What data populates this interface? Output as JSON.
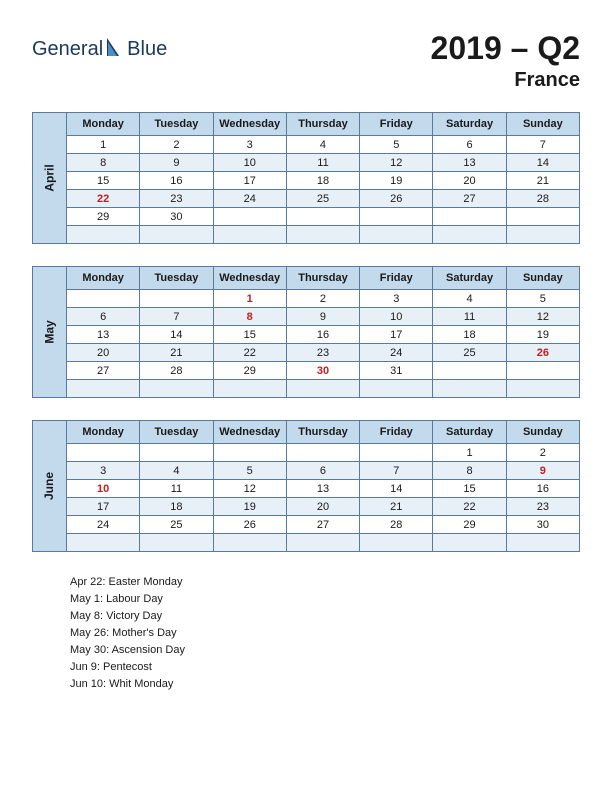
{
  "logo": {
    "text1": "General",
    "text2": "Blue"
  },
  "title": "2019 – Q2",
  "subtitle": "France",
  "colors": {
    "header_bg": "#c3d9ec",
    "shade_bg": "#e8f0f7",
    "border": "#5a7a9a",
    "holiday_text": "#c02020",
    "logo_text": "#1a3a5c",
    "logo_accent": "#4a8fc7",
    "logo_dark": "#1a3a5c"
  },
  "weekdays": [
    "Monday",
    "Tuesday",
    "Wednesday",
    "Thursday",
    "Friday",
    "Saturday",
    "Sunday"
  ],
  "months": [
    {
      "name": "April",
      "rows": [
        [
          {
            "d": "1"
          },
          {
            "d": "2"
          },
          {
            "d": "3"
          },
          {
            "d": "4"
          },
          {
            "d": "5"
          },
          {
            "d": "6"
          },
          {
            "d": "7"
          }
        ],
        [
          {
            "d": "8"
          },
          {
            "d": "9"
          },
          {
            "d": "10"
          },
          {
            "d": "11"
          },
          {
            "d": "12"
          },
          {
            "d": "13"
          },
          {
            "d": "14"
          }
        ],
        [
          {
            "d": "15"
          },
          {
            "d": "16"
          },
          {
            "d": "17"
          },
          {
            "d": "18"
          },
          {
            "d": "19"
          },
          {
            "d": "20"
          },
          {
            "d": "21"
          }
        ],
        [
          {
            "d": "22",
            "h": true
          },
          {
            "d": "23"
          },
          {
            "d": "24"
          },
          {
            "d": "25"
          },
          {
            "d": "26"
          },
          {
            "d": "27"
          },
          {
            "d": "28"
          }
        ],
        [
          {
            "d": "29"
          },
          {
            "d": "30"
          },
          {
            "d": ""
          },
          {
            "d": ""
          },
          {
            "d": ""
          },
          {
            "d": ""
          },
          {
            "d": ""
          }
        ],
        [
          {
            "d": ""
          },
          {
            "d": ""
          },
          {
            "d": ""
          },
          {
            "d": ""
          },
          {
            "d": ""
          },
          {
            "d": ""
          },
          {
            "d": ""
          }
        ]
      ]
    },
    {
      "name": "May",
      "rows": [
        [
          {
            "d": ""
          },
          {
            "d": ""
          },
          {
            "d": "1",
            "h": true
          },
          {
            "d": "2"
          },
          {
            "d": "3"
          },
          {
            "d": "4"
          },
          {
            "d": "5"
          }
        ],
        [
          {
            "d": "6"
          },
          {
            "d": "7"
          },
          {
            "d": "8",
            "h": true
          },
          {
            "d": "9"
          },
          {
            "d": "10"
          },
          {
            "d": "11"
          },
          {
            "d": "12"
          }
        ],
        [
          {
            "d": "13"
          },
          {
            "d": "14"
          },
          {
            "d": "15"
          },
          {
            "d": "16"
          },
          {
            "d": "17"
          },
          {
            "d": "18"
          },
          {
            "d": "19"
          }
        ],
        [
          {
            "d": "20"
          },
          {
            "d": "21"
          },
          {
            "d": "22"
          },
          {
            "d": "23"
          },
          {
            "d": "24"
          },
          {
            "d": "25"
          },
          {
            "d": "26",
            "h": true
          }
        ],
        [
          {
            "d": "27"
          },
          {
            "d": "28"
          },
          {
            "d": "29"
          },
          {
            "d": "30",
            "h": true
          },
          {
            "d": "31"
          },
          {
            "d": ""
          },
          {
            "d": ""
          }
        ],
        [
          {
            "d": ""
          },
          {
            "d": ""
          },
          {
            "d": ""
          },
          {
            "d": ""
          },
          {
            "d": ""
          },
          {
            "d": ""
          },
          {
            "d": ""
          }
        ]
      ]
    },
    {
      "name": "June",
      "rows": [
        [
          {
            "d": ""
          },
          {
            "d": ""
          },
          {
            "d": ""
          },
          {
            "d": ""
          },
          {
            "d": ""
          },
          {
            "d": "1"
          },
          {
            "d": "2"
          }
        ],
        [
          {
            "d": "3"
          },
          {
            "d": "4"
          },
          {
            "d": "5"
          },
          {
            "d": "6"
          },
          {
            "d": "7"
          },
          {
            "d": "8"
          },
          {
            "d": "9",
            "h": true
          }
        ],
        [
          {
            "d": "10",
            "h": true
          },
          {
            "d": "11"
          },
          {
            "d": "12"
          },
          {
            "d": "13"
          },
          {
            "d": "14"
          },
          {
            "d": "15"
          },
          {
            "d": "16"
          }
        ],
        [
          {
            "d": "17"
          },
          {
            "d": "18"
          },
          {
            "d": "19"
          },
          {
            "d": "20"
          },
          {
            "d": "21"
          },
          {
            "d": "22"
          },
          {
            "d": "23"
          }
        ],
        [
          {
            "d": "24"
          },
          {
            "d": "25"
          },
          {
            "d": "26"
          },
          {
            "d": "27"
          },
          {
            "d": "28"
          },
          {
            "d": "29"
          },
          {
            "d": "30"
          }
        ],
        [
          {
            "d": ""
          },
          {
            "d": ""
          },
          {
            "d": ""
          },
          {
            "d": ""
          },
          {
            "d": ""
          },
          {
            "d": ""
          },
          {
            "d": ""
          }
        ]
      ]
    }
  ],
  "holiday_list": [
    "Apr 22: Easter Monday",
    "May 1: Labour Day",
    "May 8: Victory Day",
    "May 26: Mother's Day",
    "May 30: Ascension Day",
    "Jun 9: Pentecost",
    "Jun 10: Whit Monday"
  ]
}
